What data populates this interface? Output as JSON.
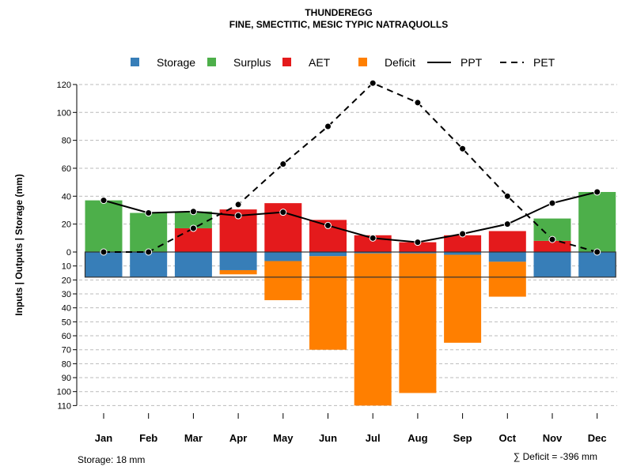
{
  "chart_data": {
    "type": "bar",
    "title": "THUNDEREGG",
    "subtitle": "FINE, SMECTITIC, MESIC TYPIC NATRAQUOLLS",
    "ylabel": "Inputs | Outputs | Storage    (mm)",
    "categories": [
      "Jan",
      "Feb",
      "Mar",
      "Apr",
      "May",
      "Jun",
      "Jul",
      "Aug",
      "Sep",
      "Oct",
      "Nov",
      "Dec"
    ],
    "ylim": [
      -110,
      130
    ],
    "yticks_top": [
      0,
      20,
      40,
      60,
      80,
      100,
      120
    ],
    "yticks_bottom": [
      10,
      20,
      30,
      40,
      50,
      60,
      70,
      80,
      90,
      100,
      110
    ],
    "legend": [
      "Storage",
      "Surplus",
      "AET",
      "Deficit",
      "PPT",
      "PET"
    ],
    "legend_placement": "top",
    "colors": {
      "Storage": "#377EB8",
      "Surplus": "#4DAF4A",
      "AET": "#E41A1C",
      "Deficit": "#FF7F00"
    },
    "series": [
      {
        "name": "AET",
        "values": [
          0,
          0,
          17,
          30.5,
          35,
          23,
          12,
          7,
          12,
          15,
          8,
          0
        ]
      },
      {
        "name": "Surplus",
        "values": [
          37,
          28,
          12,
          0,
          0,
          0,
          0,
          0,
          0,
          0,
          16,
          43
        ]
      },
      {
        "name": "Storage",
        "values": [
          18,
          18,
          18,
          13,
          6.5,
          3,
          1,
          1,
          2,
          7,
          18,
          18
        ]
      },
      {
        "name": "Deficit",
        "values": [
          0,
          0,
          0,
          3,
          28,
          67,
          109,
          100,
          63,
          25,
          0,
          0
        ]
      },
      {
        "name": "PPT",
        "values": [
          37,
          28,
          29,
          26,
          28.5,
          19,
          10,
          7,
          13,
          20,
          35,
          43
        ]
      },
      {
        "name": "PET",
        "values": [
          0,
          0,
          17,
          34,
          63,
          90,
          121,
          107,
          74,
          40,
          9,
          0
        ]
      }
    ],
    "annotations": {
      "storage": "Storage: 18 mm",
      "deficit": "∑ Deficit = -396 mm"
    }
  }
}
